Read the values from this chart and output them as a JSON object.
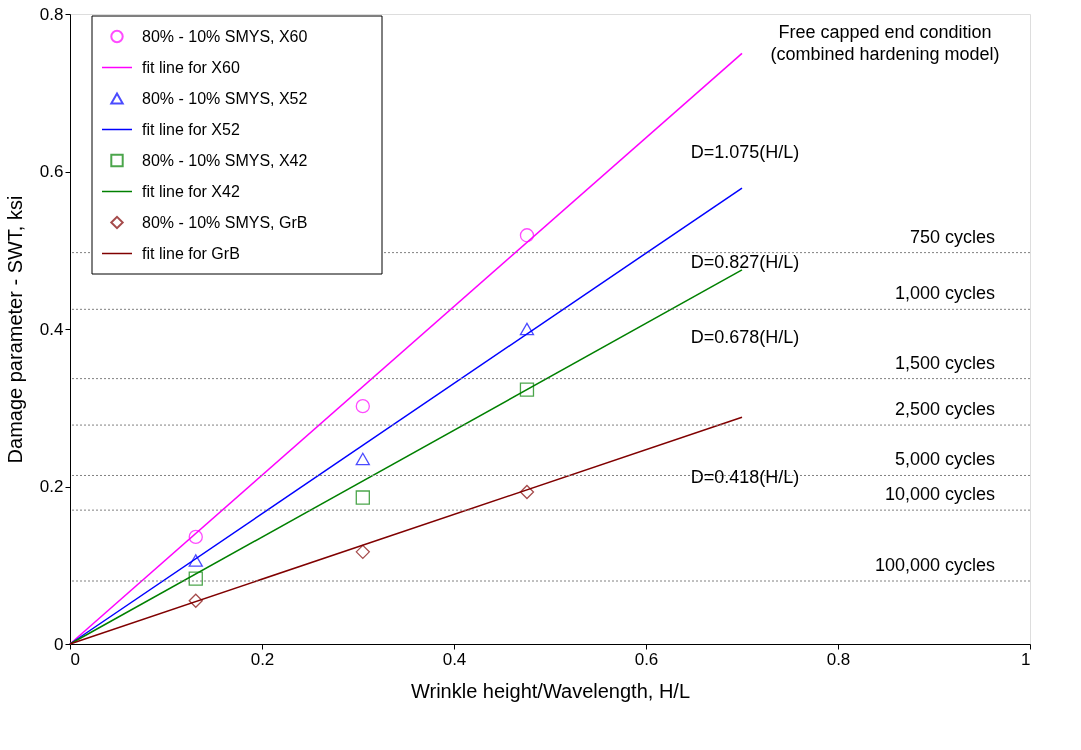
{
  "chart_data": {
    "type": "scatter",
    "xlabel": "Wrinkle height/Wavelength, H/L",
    "ylabel": "Damage parameter - SWT, ksi",
    "xlim": [
      0,
      1
    ],
    "ylim": [
      0,
      0.8
    ],
    "xticks": [
      0,
      0.2,
      0.4,
      0.6,
      0.8,
      1
    ],
    "yticks": [
      0,
      0.2,
      0.4,
      0.6,
      0.8
    ],
    "grid": false,
    "legend": "top left",
    "series": [
      {
        "name": "80% - 10% SMYS, X60",
        "marker": "circle",
        "color": "#ff00ff",
        "x": [
          0.131,
          0.305,
          0.476
        ],
        "values": [
          0.136,
          0.302,
          0.519
        ]
      },
      {
        "name": "fit line for X60",
        "type": "line",
        "marker": "none",
        "color": "#ff00ff",
        "x": [
          0,
          0.7
        ],
        "values": [
          0,
          0.75
        ]
      },
      {
        "name": "80% - 10% SMYS, X52",
        "marker": "triangle",
        "color": "#0000ff",
        "x": [
          0.131,
          0.305,
          0.476
        ],
        "values": [
          0.106,
          0.235,
          0.4
        ]
      },
      {
        "name": "fit line for X52",
        "type": "line",
        "marker": "none",
        "color": "#0000ff",
        "x": [
          0,
          0.7
        ],
        "values": [
          0,
          0.579
        ]
      },
      {
        "name": "80% - 10% SMYS, X42",
        "marker": "square",
        "color": "#008000",
        "x": [
          0.131,
          0.305,
          0.476
        ],
        "values": [
          0.083,
          0.186,
          0.323
        ]
      },
      {
        "name": "fit line for X42",
        "type": "line",
        "marker": "none",
        "color": "#008000",
        "x": [
          0,
          0.7
        ],
        "values": [
          0,
          0.475
        ]
      },
      {
        "name": "80% - 10% SMYS, GrB",
        "marker": "diamond",
        "color": "#800000",
        "x": [
          0.131,
          0.305,
          0.476
        ],
        "values": [
          0.055,
          0.117,
          0.193
        ]
      },
      {
        "name": "fit line for GrB",
        "type": "line",
        "marker": "none",
        "color": "#800000",
        "x": [
          0,
          0.7
        ],
        "values": [
          0,
          0.288
        ]
      }
    ],
    "ref_lines": [
      {
        "axis": "y",
        "value": 0.497,
        "label": "750 cycles",
        "line_style": "dotted",
        "color": "#808080"
      },
      {
        "axis": "y",
        "value": 0.425,
        "label": "1,000 cycles",
        "line_style": "dotted",
        "color": "#808080"
      },
      {
        "axis": "y",
        "value": 0.337,
        "label": "1,500 cycles",
        "line_style": "dotted",
        "color": "#808080"
      },
      {
        "axis": "y",
        "value": 0.278,
        "label": "2,500 cycles",
        "line_style": "dotted",
        "color": "#808080"
      },
      {
        "axis": "y",
        "value": 0.214,
        "label": "5,000 cycles",
        "line_style": "dotted",
        "color": "#808080"
      },
      {
        "axis": "y",
        "value": 0.17,
        "label": "10,000 cycles",
        "line_style": "dotted",
        "color": "#808080"
      },
      {
        "axis": "y",
        "value": 0.08,
        "label": "100,000 cycles",
        "line_style": "dotted",
        "color": "#808080"
      }
    ],
    "annotations": [
      "Free capped end condition\n(combined hardening model)",
      "D=1.075(H/L)",
      "D=0.827(H/L)",
      "D=0.678(H/L)",
      "D=0.418(H/L)"
    ]
  }
}
